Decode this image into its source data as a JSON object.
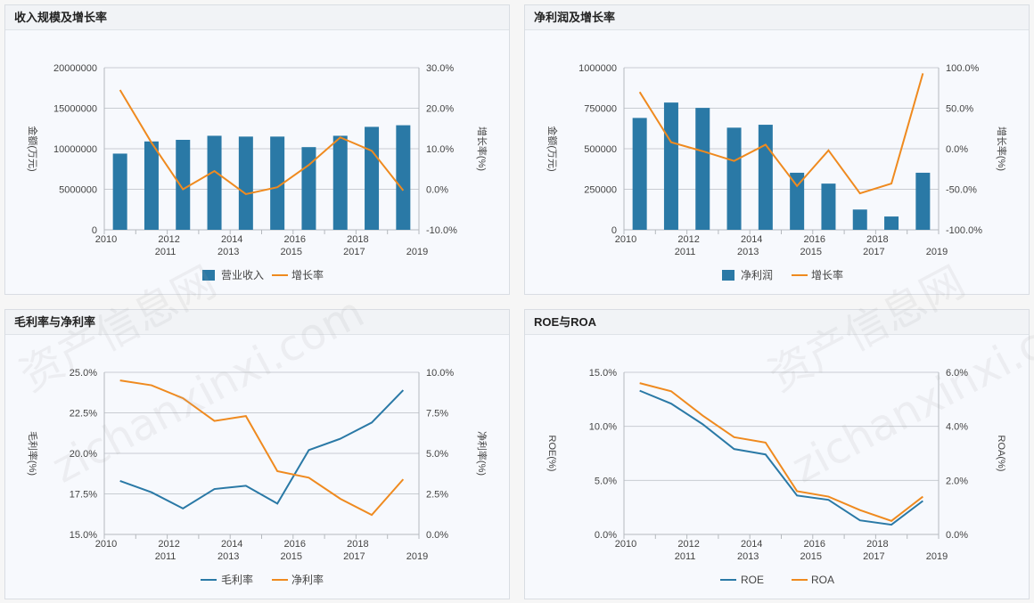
{
  "colors": {
    "blue": "#2a79a6",
    "orange": "#ef8a1f",
    "grid": "#c8ccd2",
    "axis": "#b5b9be",
    "text": "#444444"
  },
  "watermark": {
    "cn": "资产信息网",
    "en": "zichanxinxi.com"
  },
  "panels": {
    "revenue": {
      "title": "收入规模及增长率"
    },
    "profit": {
      "title": "净利润及增长率"
    },
    "margin": {
      "title": "毛利率与净利率"
    },
    "roe": {
      "title": "ROE与ROA"
    }
  },
  "chart_data": [
    {
      "id": "revenue",
      "type": "bar+line",
      "categories": [
        "2010",
        "2011",
        "2012",
        "2013",
        "2014",
        "2015",
        "2016",
        "2017",
        "2018",
        "2019"
      ],
      "bar_series": {
        "name": "营业收入",
        "values": [
          9400000,
          10900000,
          11100000,
          11600000,
          11500000,
          11500000,
          10200000,
          11600000,
          12700000,
          12900000
        ],
        "color": "#2a79a6"
      },
      "line_series": {
        "name": "增长率",
        "values": [
          24.5,
          11.5,
          0.0,
          4.5,
          -1.2,
          0.5,
          6.0,
          12.8,
          9.5,
          -0.3
        ],
        "color": "#ef8a1f"
      },
      "ylabel_left": "金额(万元)",
      "ylabel_right": "增长率(%)",
      "ylim_left": [
        0,
        20000000
      ],
      "yticks_left": [
        "0",
        "5000000",
        "10000000",
        "15000000",
        "20000000"
      ],
      "ylim_right": [
        -10,
        30
      ],
      "yticks_right": [
        "-10.0%",
        "0.0%",
        "10.0%",
        "20.0%",
        "30.0%"
      ],
      "legend": "bottom"
    },
    {
      "id": "profit",
      "type": "bar+line",
      "categories": [
        "2010",
        "2011",
        "2012",
        "2013",
        "2014",
        "2015",
        "2016",
        "2017",
        "2018",
        "2019"
      ],
      "bar_series": {
        "name": "净利润",
        "values": [
          690000,
          785000,
          752000,
          630000,
          648000,
          352000,
          285000,
          125000,
          82000,
          352000
        ],
        "color": "#2a79a6"
      },
      "line_series": {
        "name": "增长率",
        "values": [
          70,
          8,
          -3,
          -15,
          5,
          -46,
          -2,
          -55,
          -43,
          93
        ],
        "color": "#ef8a1f"
      },
      "ylabel_left": "金额(万元)",
      "ylabel_right": "增长率(%)",
      "ylim_left": [
        0,
        1000000
      ],
      "yticks_left": [
        "0",
        "250000",
        "500000",
        "750000",
        "1000000"
      ],
      "ylim_right": [
        -100,
        100
      ],
      "yticks_right": [
        "-100.0%",
        "-50.0%",
        "0.0%",
        "50.0%",
        "100.0%"
      ],
      "legend": "bottom"
    },
    {
      "id": "margin",
      "type": "line",
      "categories": [
        "2010",
        "2011",
        "2012",
        "2013",
        "2014",
        "2015",
        "2016",
        "2017",
        "2018",
        "2019"
      ],
      "left_series": {
        "name": "毛利率",
        "values": [
          18.3,
          17.6,
          16.6,
          17.8,
          18.0,
          16.9,
          20.2,
          20.9,
          21.9,
          23.9
        ],
        "color": "#2a79a6"
      },
      "right_series": {
        "name": "净利率",
        "values": [
          9.5,
          9.2,
          8.4,
          7.0,
          7.3,
          3.9,
          3.5,
          2.2,
          1.2,
          3.4
        ],
        "color": "#ef8a1f"
      },
      "ylabel_left": "毛利率(%)",
      "ylabel_right": "净利率(%)",
      "ylim_left": [
        15,
        25
      ],
      "yticks_left": [
        "15.0%",
        "17.5%",
        "20.0%",
        "22.5%",
        "25.0%"
      ],
      "ylim_right": [
        0,
        10
      ],
      "yticks_right": [
        "0.0%",
        "2.5%",
        "5.0%",
        "7.5%",
        "10.0%"
      ],
      "legend": "bottom"
    },
    {
      "id": "roe",
      "type": "line",
      "categories": [
        "2010",
        "2011",
        "2012",
        "2013",
        "2014",
        "2015",
        "2016",
        "2017",
        "2018",
        "2019"
      ],
      "left_series": {
        "name": "ROE",
        "values": [
          13.3,
          12.1,
          10.2,
          7.9,
          7.4,
          3.6,
          3.2,
          1.3,
          0.9,
          3.1
        ],
        "color": "#2a79a6"
      },
      "right_series": {
        "name": "ROA",
        "values": [
          5.6,
          5.3,
          4.4,
          3.6,
          3.4,
          1.6,
          1.4,
          0.9,
          0.5,
          1.4
        ],
        "color": "#ef8a1f"
      },
      "ylabel_left": "ROE(%)",
      "ylabel_right": "ROA(%)",
      "ylim_left": [
        0,
        15
      ],
      "yticks_left": [
        "0.0%",
        "5.0%",
        "10.0%",
        "15.0%"
      ],
      "ylim_right": [
        0,
        6
      ],
      "yticks_right": [
        "0.0%",
        "2.0%",
        "4.0%",
        "6.0%"
      ],
      "legend": "bottom"
    }
  ]
}
